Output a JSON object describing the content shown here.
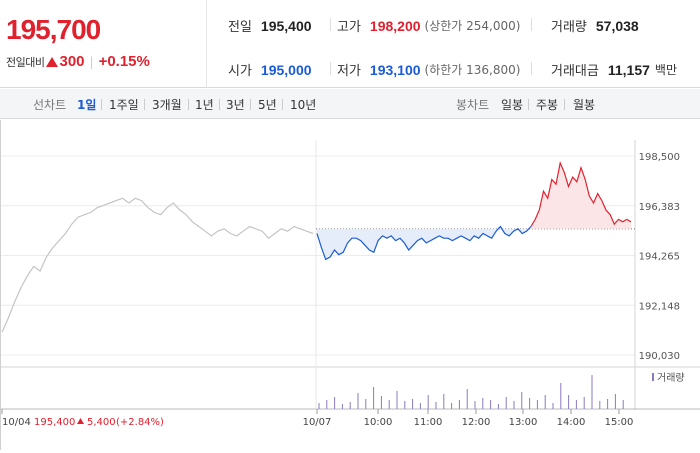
{
  "quote": {
    "price": "195,700",
    "diff_label": "전일대비",
    "diff_value": "300",
    "diff_rate": "+0.15%"
  },
  "stats": {
    "prev_close": {
      "label": "전일",
      "value": "195,400"
    },
    "high": {
      "label": "고가",
      "value": "198,200",
      "sub": "(상한가 254,000)"
    },
    "volume": {
      "label": "거래량",
      "value": "57,038"
    },
    "open": {
      "label": "시가",
      "value": "195,000"
    },
    "low": {
      "label": "저가",
      "value": "193,100",
      "sub": "(하한가 136,800)"
    },
    "amount": {
      "label": "거래대금",
      "value": "11,157",
      "unit": "백만"
    }
  },
  "toolbar": {
    "line_label": "선차트",
    "line_periods": [
      "1일",
      "1주일",
      "3개월",
      "1년",
      "3년",
      "5년",
      "10년"
    ],
    "active_period": "1일",
    "candle_label": "봉차트",
    "candle_periods": [
      "일봉",
      "주봉",
      "월봉"
    ]
  },
  "colors": {
    "up": "#e0212e",
    "down": "#1a5bd6",
    "prev_day": "#c4c4c4",
    "volume": "#8a7bc0"
  },
  "chart_data": {
    "type": "line",
    "y_ticks": [
      "198,500",
      "196,383",
      "194,265",
      "192,148",
      "190,030"
    ],
    "ylim": [
      190030,
      198500
    ],
    "reference_price": 195400,
    "x_labels": [
      "10/04",
      "10/07",
      "10:00",
      "11:00",
      "12:00",
      "13:00",
      "14:00",
      "15:00"
    ],
    "prev_day_note": {
      "date": "10/04",
      "close": "195,400",
      "change": "5,400",
      "rate": "(+2.84%)"
    },
    "volume_legend": "거래량",
    "series": [
      {
        "values": [
          191000,
          191600,
          192300,
          192900,
          193400,
          193800,
          193600,
          194200,
          194600,
          194900,
          195200,
          195600,
          195900,
          196000,
          196100,
          196300,
          196400,
          196500,
          196600,
          196700,
          196500,
          196700,
          196600,
          196300,
          196100,
          196000,
          196300,
          196500,
          196200,
          196000,
          195700,
          195500,
          195300,
          195100,
          195300,
          195400,
          195200,
          195100,
          195300,
          195500,
          195400,
          195300,
          195000,
          195200,
          195400,
          195300,
          195500,
          195400,
          195300,
          195200
        ]
      },
      {
        "values": [
          195200,
          194600,
          194100,
          194200,
          194500,
          194300,
          194400,
          194800,
          195000,
          195000,
          194900,
          194700,
          194500,
          194400,
          194900,
          195100,
          195000,
          195100,
          194900,
          195000,
          194800,
          194500,
          194700,
          194900,
          195000,
          194800,
          194900,
          195000,
          195100,
          195000,
          195000,
          194900,
          195000,
          195100,
          195000,
          194900,
          195100,
          195000,
          195200,
          195100,
          195000,
          195300,
          195500,
          195200,
          195100,
          195300,
          195400,
          195200,
          195300,
          195500
        ]
      },
      {
        "values": [
          195500,
          195800,
          196200,
          197000,
          196700,
          197500,
          197300,
          198200,
          197800,
          197200,
          197600,
          197400,
          198000,
          197500,
          196800,
          196500,
          196900,
          196600,
          196200,
          196000,
          195600,
          195800,
          195700,
          195800,
          195700
        ]
      }
    ],
    "volume": [
      6,
      9,
      12,
      5,
      7,
      16,
      10,
      22,
      13,
      9,
      18,
      8,
      10,
      6,
      14,
      7,
      15,
      6,
      9,
      20,
      8,
      11,
      9,
      5,
      12,
      8,
      17,
      11,
      9,
      14,
      6,
      26,
      14,
      9,
      12,
      34,
      8,
      10,
      15,
      9
    ]
  }
}
